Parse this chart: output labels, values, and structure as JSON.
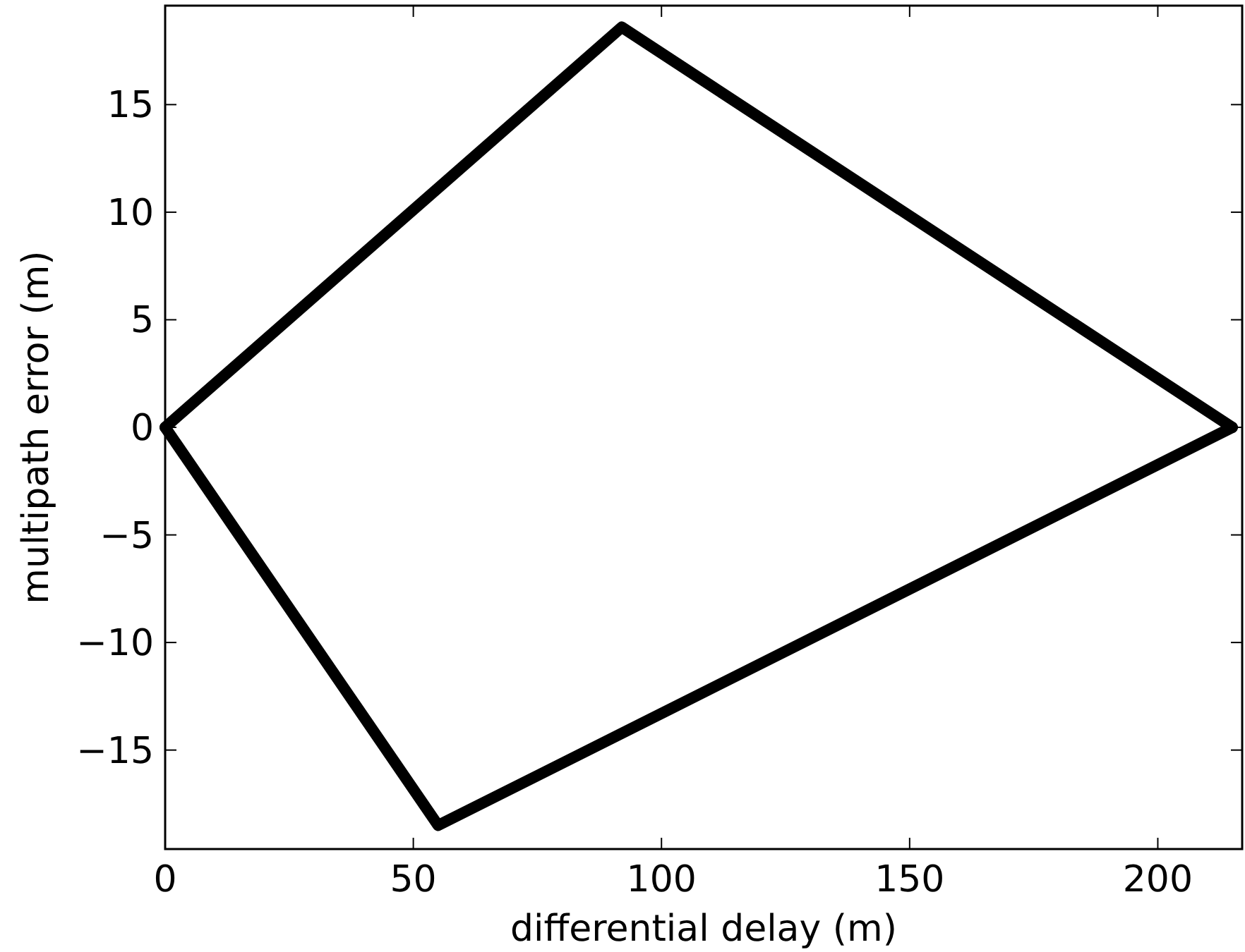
{
  "chart_data": {
    "type": "line",
    "xlabel": "differential delay (m)",
    "ylabel": "multipath error (m)",
    "xlim": [
      0,
      217
    ],
    "ylim": [
      -19.6,
      19.6
    ],
    "xticks": [
      0,
      50,
      100,
      150,
      200
    ],
    "yticks": [
      {
        "value": -15,
        "label": "−15"
      },
      {
        "value": -10,
        "label": "−10"
      },
      {
        "value": -5,
        "label": "−5"
      },
      0,
      5,
      10,
      15
    ],
    "grid": false,
    "marker": "none",
    "line_style": "solid",
    "series": [
      {
        "color": "#000000",
        "x": [
          0,
          92,
          215
        ],
        "values": [
          0,
          18.6,
          0
        ]
      },
      {
        "color": "#000000",
        "x": [
          0,
          55,
          215
        ],
        "values": [
          0,
          -18.5,
          0
        ]
      }
    ]
  }
}
